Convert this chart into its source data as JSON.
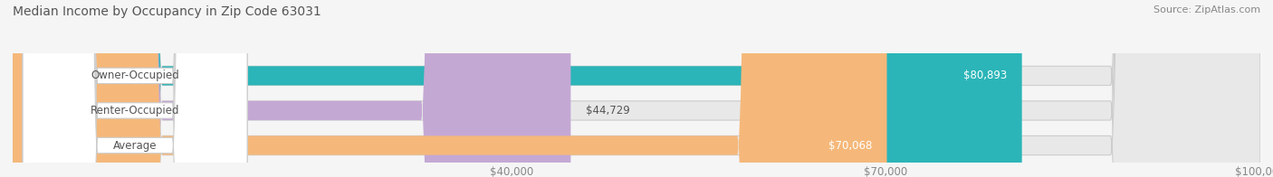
{
  "title": "Median Income by Occupancy in Zip Code 63031",
  "source": "Source: ZipAtlas.com",
  "categories": [
    "Owner-Occupied",
    "Renter-Occupied",
    "Average"
  ],
  "values": [
    80893,
    44729,
    70068
  ],
  "bar_colors": [
    "#2bb5b8",
    "#c4a8d4",
    "#f5b87a"
  ],
  "bar_labels": [
    "$80,893",
    "$44,729",
    "$70,068"
  ],
  "xlim": [
    0,
    100000
  ],
  "xticks": [
    0,
    40000,
    70000,
    100000
  ],
  "xtick_labels": [
    "",
    "$40,000",
    "$70,000",
    "$100,000"
  ],
  "background_color": "#f5f5f5",
  "bar_background_color": "#e8e8e8",
  "label_color": "#555555",
  "title_color": "#555555",
  "figsize": [
    14.06,
    1.96
  ],
  "dpi": 100
}
